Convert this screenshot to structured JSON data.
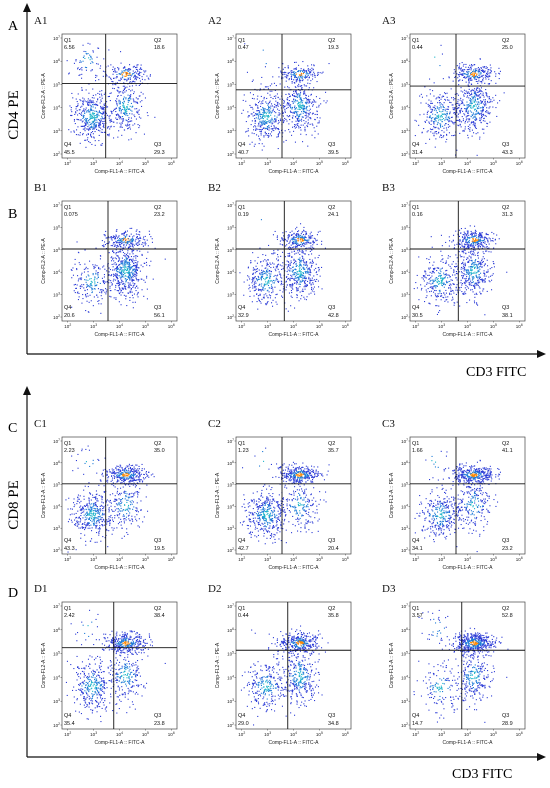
{
  "figure": {
    "panel_A_letter": "A",
    "panel_B_letter": "B",
    "panel_C_letter": "C",
    "panel_D_letter": "D",
    "top_y_axis": "CD4 PE",
    "top_x_axis": "CD3 FITC",
    "bottom_y_axis": "CD8 PE",
    "bottom_x_axis": "CD3 FITC"
  },
  "colors": {
    "axis": "#111111",
    "dots": "#2b3bd6",
    "dots_mid": "#19b3c8",
    "dots_hot": "#ff8a00"
  },
  "chart_data": [
    {
      "type": "scatter",
      "id": "A1",
      "quadrants": {
        "Q1": "6.56",
        "Q2": "18.6",
        "Q3": "29.3",
        "Q4": "45.5"
      },
      "xlabel": "Comp-FL1-A :: FITC-A",
      "ylabel": "Comp-FL2-A :: PE-A",
      "xticks": [
        "10^2",
        "10^3",
        "10^4",
        "10^5",
        "10^6"
      ],
      "yticks": [
        "10^7",
        "10^6",
        "10^5",
        "10^4",
        "10^3",
        "10^2"
      ]
    },
    {
      "type": "scatter",
      "id": "A2",
      "quadrants": {
        "Q1": "0.47",
        "Q2": "19.3",
        "Q3": "39.5",
        "Q4": "40.7"
      },
      "xlabel": "Comp-FL1-A :: FITC-A",
      "ylabel": "Comp-FL2-A :: PE-A",
      "xticks": [
        "10^2",
        "10^3",
        "10^4",
        "10^5",
        "10^6"
      ],
      "yticks": [
        "10^7",
        "10^6",
        "10^5",
        "10^4",
        "10^3",
        "10^2"
      ]
    },
    {
      "type": "scatter",
      "id": "A3",
      "quadrants": {
        "Q1": "0.44",
        "Q2": "25.0",
        "Q3": "43.3",
        "Q4": "31.4"
      },
      "xlabel": "Comp-FL1-A :: FITC-A",
      "ylabel": "Comp-FL2-A :: PE-A",
      "xticks": [
        "10^2",
        "10^3",
        "10^4",
        "10^5",
        "10^6"
      ],
      "yticks": [
        "10^7",
        "10^6",
        "10^5",
        "10^4",
        "10^3",
        "10^2"
      ]
    },
    {
      "type": "scatter",
      "id": "B1",
      "quadrants": {
        "Q1": "0.075",
        "Q2": "23.2",
        "Q3": "56.1",
        "Q4": "20.6"
      },
      "xlabel": "Comp-FL1-A :: FITC-A",
      "ylabel": "Comp-FL2-A :: PE-A",
      "xticks": [
        "10^2",
        "10^3",
        "10^4",
        "10^5",
        "10^6"
      ],
      "yticks": [
        "10^7",
        "10^6",
        "10^5",
        "10^4",
        "10^3",
        "10^2"
      ]
    },
    {
      "type": "scatter",
      "id": "B2",
      "quadrants": {
        "Q1": "0.19",
        "Q2": "24.1",
        "Q3": "42.8",
        "Q4": "32.9"
      },
      "xlabel": "Comp-FL1-A :: FITC-A",
      "ylabel": "Comp-FL2-A :: PE-A",
      "xticks": [
        "10^2",
        "10^3",
        "10^4",
        "10^5",
        "10^6"
      ],
      "yticks": [
        "10^7",
        "10^6",
        "10^5",
        "10^4",
        "10^3",
        "10^2"
      ]
    },
    {
      "type": "scatter",
      "id": "B3",
      "quadrants": {
        "Q1": "0.16",
        "Q2": "31.3",
        "Q3": "38.1",
        "Q4": "30.5"
      },
      "xlabel": "Comp-FL1-A :: FITC-A",
      "ylabel": "Comp-FL2-A :: PE-A",
      "xticks": [
        "10^2",
        "10^3",
        "10^4",
        "10^5",
        "10^6"
      ],
      "yticks": [
        "10^7",
        "10^6",
        "10^5",
        "10^4",
        "10^3",
        "10^2"
      ]
    },
    {
      "type": "scatter",
      "id": "C1",
      "quadrants": {
        "Q1": "2.23",
        "Q2": "35.0",
        "Q3": "19.5",
        "Q4": "43.3"
      },
      "xlabel": "Comp-FL1-A :: FITC-A",
      "ylabel": "Comp-FL2-A :: PE-A",
      "xticks": [
        "10^2",
        "10^3",
        "10^4",
        "10^5",
        "10^6"
      ],
      "yticks": [
        "10^7",
        "10^6",
        "10^5",
        "10^4",
        "10^3",
        "10^2"
      ]
    },
    {
      "type": "scatter",
      "id": "C2",
      "quadrants": {
        "Q1": "1.23",
        "Q2": "35.7",
        "Q3": "20.4",
        "Q4": "42.7"
      },
      "xlabel": "Comp-FL1-A :: FITC-A",
      "ylabel": "Comp-FL2-A :: PE-A",
      "xticks": [
        "10^2",
        "10^3",
        "10^4",
        "10^5",
        "10^6"
      ],
      "yticks": [
        "10^7",
        "10^6",
        "10^5",
        "10^4",
        "10^3",
        "10^2"
      ]
    },
    {
      "type": "scatter",
      "id": "C3",
      "quadrants": {
        "Q1": "1.66",
        "Q2": "41.1",
        "Q3": "23.2",
        "Q4": "34.1"
      },
      "xlabel": "Comp-FL1-A :: FITC-A",
      "ylabel": "Comp-FL2-A :: PE-A",
      "xticks": [
        "10^2",
        "10^3",
        "10^4",
        "10^5",
        "10^6"
      ],
      "yticks": [
        "10^7",
        "10^6",
        "10^5",
        "10^4",
        "10^3",
        "10^2"
      ]
    },
    {
      "type": "scatter",
      "id": "D1",
      "quadrants": {
        "Q1": "2.42",
        "Q2": "38.4",
        "Q3": "23.8",
        "Q4": "35.4"
      },
      "xlabel": "Comp-FL1-A :: FITC-A",
      "ylabel": "Comp-FL2-A :: PE-A",
      "xticks": [
        "10^2",
        "10^3",
        "10^4",
        "10^5",
        "10^6"
      ],
      "yticks": [
        "10^7",
        "10^6",
        "10^5",
        "10^4",
        "10^3",
        "10^2"
      ]
    },
    {
      "type": "scatter",
      "id": "D2",
      "quadrants": {
        "Q1": "0.44",
        "Q2": "35.8",
        "Q3": "34.8",
        "Q4": "29.0"
      },
      "xlabel": "Comp-FL1-A :: FITC-A",
      "ylabel": "Comp-FL2-A :: PE-A",
      "xticks": [
        "10^2",
        "10^3",
        "10^4",
        "10^5",
        "10^6"
      ],
      "yticks": [
        "10^7",
        "10^6",
        "10^5",
        "10^4",
        "10^3",
        "10^2"
      ]
    },
    {
      "type": "scatter",
      "id": "D3",
      "quadrants": {
        "Q1": "3.57",
        "Q2": "52.8",
        "Q3": "28.9",
        "Q4": "14.7"
      },
      "xlabel": "Comp-FL1-A :: FITC-A",
      "ylabel": "Comp-FL2-A :: PE-A",
      "xticks": [
        "10^2",
        "10^3",
        "10^4",
        "10^5",
        "10^6"
      ],
      "yticks": [
        "10^7",
        "10^6",
        "10^5",
        "10^4",
        "10^3",
        "10^2"
      ]
    }
  ]
}
